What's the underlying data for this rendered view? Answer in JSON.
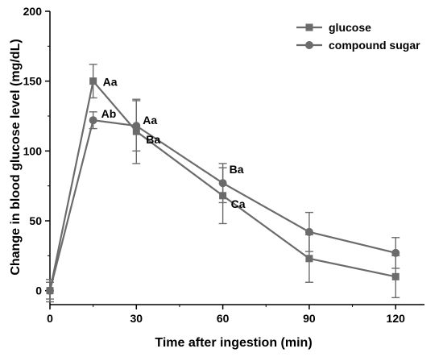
{
  "chart_data": {
    "type": "line",
    "xlabel": "Time after ingestion (min)",
    "ylabel": "Change in blood glucose level (mg/dL)",
    "xlim": [
      0,
      130
    ],
    "ylim": [
      -10,
      200
    ],
    "xticks": [
      0,
      30,
      60,
      90,
      120
    ],
    "yticks": [
      0,
      50,
      100,
      150,
      200
    ],
    "grid": false,
    "legend_position": "top-right",
    "series": [
      {
        "name": "glucose",
        "marker": "square",
        "color": "#6b6b6b",
        "x": [
          0,
          15,
          30,
          60,
          90,
          120
        ],
        "y": [
          0,
          150,
          114,
          68,
          23,
          10
        ],
        "err": [
          8,
          12,
          23,
          20,
          17,
          15
        ],
        "labels": [
          "",
          "Aa",
          "Ba",
          "Ca",
          "",
          ""
        ]
      },
      {
        "name": "compound sugar",
        "marker": "circle",
        "color": "#6b6b6b",
        "x": [
          0,
          15,
          30,
          60,
          90,
          120
        ],
        "y": [
          0,
          122,
          118,
          77,
          42,
          27
        ],
        "err": [
          6,
          6,
          18,
          14,
          14,
          11
        ],
        "labels": [
          "",
          "Ab",
          "Aa",
          "Ba",
          "",
          ""
        ]
      }
    ]
  }
}
